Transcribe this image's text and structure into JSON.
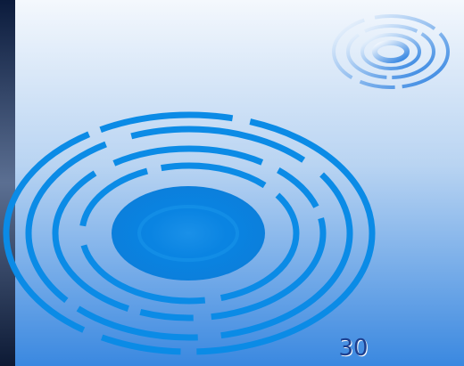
{
  "page_number": "30"
}
